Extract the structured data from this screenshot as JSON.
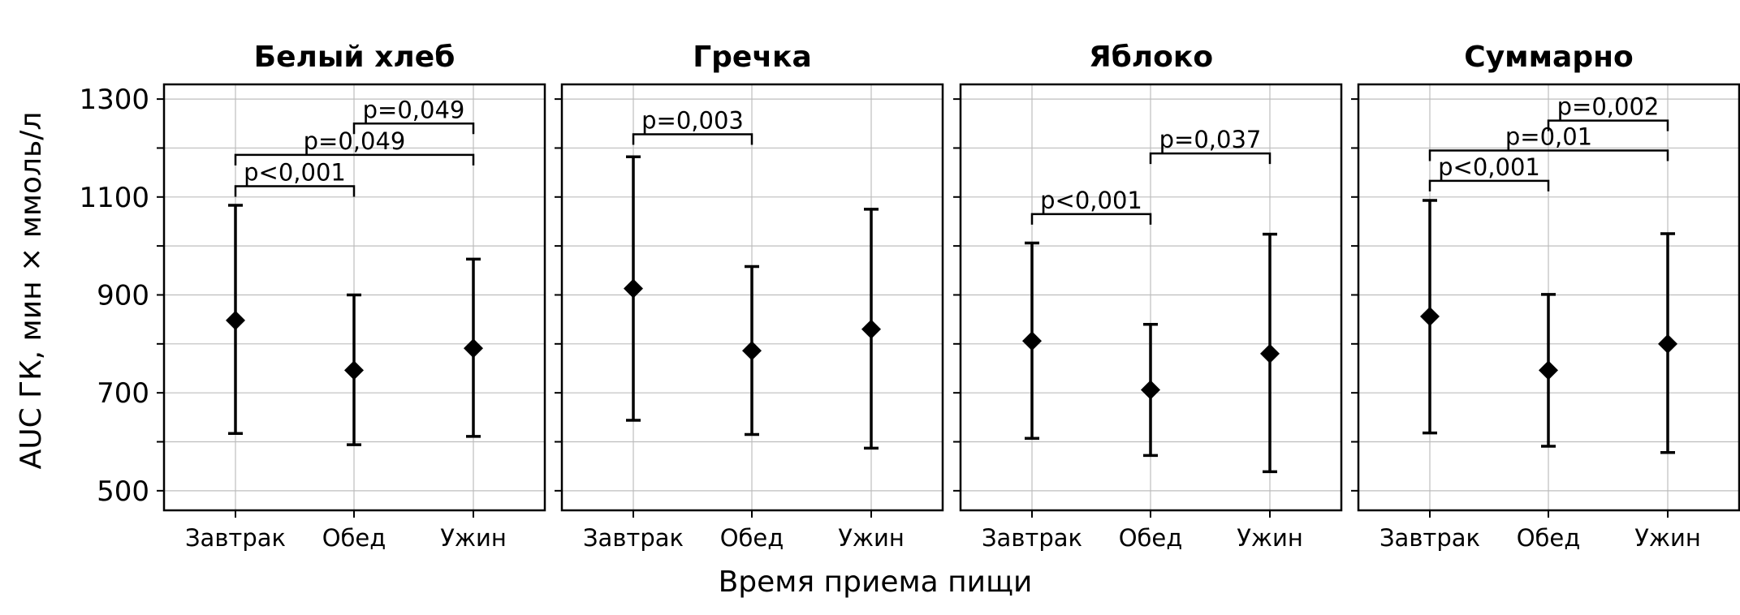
{
  "chart_data": {
    "type": "scatter",
    "subtype": "point-with-error-bars",
    "ylabel": "AUC ГК, мин × ммоль/л",
    "xlabel": "Время приема пищи",
    "ylim": [
      460,
      1330
    ],
    "yticks": [
      500,
      700,
      900,
      1100,
      1300
    ],
    "yticks_labels": [
      "500",
      "700",
      "900",
      "1100",
      "1300"
    ],
    "categories": [
      "Завтрак",
      "Обед",
      "Ужин"
    ],
    "grid": true,
    "legend": "none",
    "marker": "diamond",
    "color": "#000000",
    "panels": [
      {
        "title": "Белый хлеб",
        "points": [
          {
            "x": "Завтрак",
            "y": 848,
            "low": 617,
            "high": 1083
          },
          {
            "x": "Обед",
            "y": 746,
            "low": 594,
            "high": 900
          },
          {
            "x": "Ужин",
            "y": 791,
            "low": 611,
            "high": 973
          }
        ],
        "comparisons": [
          {
            "from": "Завтрак",
            "to": "Обед",
            "label": "p<0,001",
            "level": 1122
          },
          {
            "from": "Завтрак",
            "to": "Ужин",
            "label": "p=0,049",
            "level": 1186
          },
          {
            "from": "Обед",
            "to": "Ужин",
            "label": "p=0,049",
            "level": 1250
          }
        ]
      },
      {
        "title": "Гречка",
        "points": [
          {
            "x": "Завтрак",
            "y": 913,
            "low": 644,
            "high": 1182
          },
          {
            "x": "Обед",
            "y": 786,
            "low": 615,
            "high": 958
          },
          {
            "x": "Ужин",
            "y": 830,
            "low": 587,
            "high": 1075
          }
        ],
        "comparisons": [
          {
            "from": "Завтрак",
            "to": "Обед",
            "label": "p=0,003",
            "level": 1228
          }
        ]
      },
      {
        "title": "Яблоко",
        "points": [
          {
            "x": "Завтрак",
            "y": 806,
            "low": 607,
            "high": 1006
          },
          {
            "x": "Обед",
            "y": 706,
            "low": 572,
            "high": 840
          },
          {
            "x": "Ужин",
            "y": 780,
            "low": 539,
            "high": 1024
          }
        ],
        "comparisons": [
          {
            "from": "Завтрак",
            "to": "Обед",
            "label": "p<0,001",
            "level": 1065
          },
          {
            "from": "Обед",
            "to": "Ужин",
            "label": "p=0,037",
            "level": 1189
          }
        ]
      },
      {
        "title": "Суммарно",
        "points": [
          {
            "x": "Завтрак",
            "y": 856,
            "low": 618,
            "high": 1093
          },
          {
            "x": "Обед",
            "y": 746,
            "low": 591,
            "high": 901
          },
          {
            "x": "Ужин",
            "y": 800,
            "low": 578,
            "high": 1025
          }
        ],
        "comparisons": [
          {
            "from": "Завтрак",
            "to": "Обед",
            "label": "p<0,001",
            "level": 1133
          },
          {
            "from": "Завтрак",
            "to": "Ужин",
            "label": "p=0,01",
            "level": 1195
          },
          {
            "from": "Обед",
            "to": "Ужин",
            "label": "p=0,002",
            "level": 1256
          }
        ]
      }
    ]
  }
}
